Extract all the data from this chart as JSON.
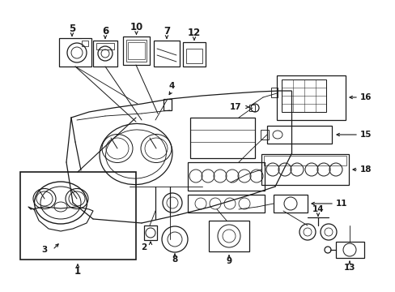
{
  "bg_color": "#ffffff",
  "line_color": "#1a1a1a",
  "fig_width": 4.89,
  "fig_height": 3.6,
  "dpi": 100,
  "label_fs": 8.5,
  "small_label_fs": 7.5
}
